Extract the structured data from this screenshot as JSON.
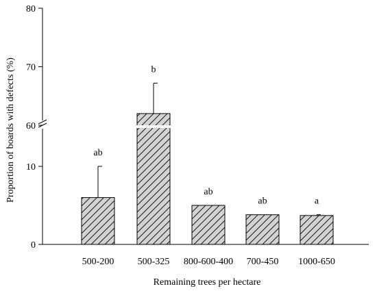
{
  "chart_data": {
    "type": "bar",
    "title": "",
    "xlabel": "Remaining trees per hectare",
    "ylabel": "Proportion of boards with defects (%)",
    "categories": [
      "500-200",
      "500-325",
      "800-600-400",
      "700-450",
      "1000-650"
    ],
    "values": [
      6.0,
      62.0,
      5.0,
      3.8,
      3.7
    ],
    "error_upper": [
      10.0,
      67.2,
      null,
      null,
      3.8
    ],
    "significance_letters": [
      "ab",
      "b",
      "ab",
      "ab",
      "a"
    ],
    "y_axis": {
      "broken": true,
      "lower_segment": {
        "range": [
          0,
          15
        ],
        "ticks": [
          "0",
          "10"
        ]
      },
      "upper_segment": {
        "range": [
          60,
          80
        ],
        "ticks": [
          "60",
          "70",
          "80"
        ]
      }
    },
    "bar_fill": "#d3d3d3",
    "hatch": "diagonal",
    "grid": false,
    "legend": "none"
  }
}
